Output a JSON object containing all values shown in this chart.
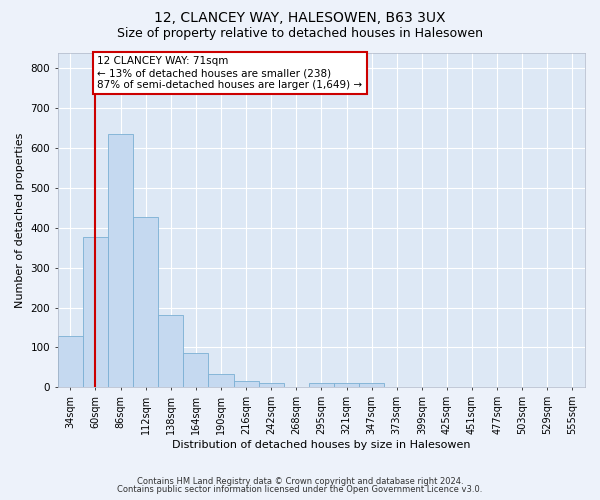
{
  "title1": "12, CLANCEY WAY, HALESOWEN, B63 3UX",
  "title2": "Size of property relative to detached houses in Halesowen",
  "xlabel": "Distribution of detached houses by size in Halesowen",
  "ylabel": "Number of detached properties",
  "categories": [
    "34sqm",
    "60sqm",
    "86sqm",
    "112sqm",
    "138sqm",
    "164sqm",
    "190sqm",
    "216sqm",
    "242sqm",
    "268sqm",
    "295sqm",
    "321sqm",
    "347sqm",
    "373sqm",
    "399sqm",
    "425sqm",
    "451sqm",
    "477sqm",
    "503sqm",
    "529sqm",
    "555sqm"
  ],
  "values": [
    128,
    377,
    635,
    428,
    182,
    86,
    34,
    15,
    10,
    0,
    10,
    10,
    10,
    0,
    0,
    0,
    0,
    0,
    0,
    0,
    0
  ],
  "bar_color": "#c5d9f0",
  "bar_edge_color": "#7bafd4",
  "vline_color": "#cc0000",
  "vline_x_bar_index": 1.0,
  "annotation_text": "12 CLANCEY WAY: 71sqm\n← 13% of detached houses are smaller (238)\n87% of semi-detached houses are larger (1,649) →",
  "annotation_box_facecolor": "#ffffff",
  "annotation_box_edgecolor": "#cc0000",
  "ylim": [
    0,
    840
  ],
  "yticks": [
    0,
    100,
    200,
    300,
    400,
    500,
    600,
    700,
    800
  ],
  "footer1": "Contains HM Land Registry data © Crown copyright and database right 2024.",
  "footer2": "Contains public sector information licensed under the Open Government Licence v3.0.",
  "fig_bg_color": "#edf2fa",
  "plot_bg_color": "#dde8f5",
  "grid_color": "#ffffff",
  "title1_fontsize": 10,
  "title2_fontsize": 9,
  "axis_label_fontsize": 8,
  "tick_fontsize": 7,
  "annotation_fontsize": 7.5,
  "footer_fontsize": 6
}
